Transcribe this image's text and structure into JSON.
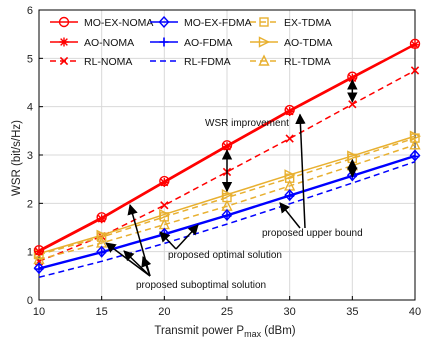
{
  "chart_data": {
    "type": "line",
    "x": [
      10,
      15,
      20,
      25,
      30,
      35,
      40
    ],
    "xlabel": "Transmit power P",
    "xlabel_sub": "max",
    "xlabel_unit": "(dBm)",
    "ylabel": "WSR (bit/s/Hz)",
    "xlim": [
      10,
      40
    ],
    "ylim": [
      0,
      6
    ],
    "xticks": [
      10,
      15,
      20,
      25,
      30,
      35,
      40
    ],
    "yticks": [
      0,
      1,
      2,
      3,
      4,
      5,
      6
    ],
    "grid": true,
    "legend_position": "top-left",
    "series": [
      {
        "name": "MO-EX-NOMA",
        "color": "#ff0000",
        "dash": "solid",
        "marker": "circle",
        "values": [
          1.03,
          1.71,
          2.46,
          3.2,
          3.93,
          4.62,
          5.3
        ]
      },
      {
        "name": "MO-EX-FDMA",
        "color": "#0000ff",
        "dash": "solid",
        "marker": "diamond",
        "values": [
          0.66,
          1.0,
          1.37,
          1.76,
          2.17,
          2.58,
          2.99
        ]
      },
      {
        "name": "EX-TDMA",
        "color": "#e8b030",
        "dash": "dashed",
        "marker": "square",
        "values": [
          0.94,
          1.3,
          1.72,
          2.12,
          2.52,
          2.93,
          3.35
        ]
      },
      {
        "name": "AO-NOMA",
        "color": "#ff0000",
        "dash": "solid",
        "marker": "star",
        "values": [
          1.0,
          1.68,
          2.43,
          3.17,
          3.9,
          4.59,
          5.28
        ]
      },
      {
        "name": "AO-FDMA",
        "color": "#0000ff",
        "dash": "solid",
        "marker": "plus",
        "values": [
          0.64,
          0.98,
          1.35,
          1.74,
          2.15,
          2.56,
          2.97
        ]
      },
      {
        "name": "AO-TDMA",
        "color": "#e8b030",
        "dash": "solid",
        "marker": "triangle-right",
        "values": [
          0.96,
          1.34,
          1.77,
          2.18,
          2.59,
          2.98,
          3.39
        ]
      },
      {
        "name": "RL-NOMA",
        "color": "#ff0000",
        "dash": "dashed",
        "marker": "x",
        "values": [
          0.8,
          1.32,
          1.96,
          2.65,
          3.34,
          4.05,
          4.75
        ]
      },
      {
        "name": "RL-FDMA",
        "color": "#0000ff",
        "dash": "dashed",
        "marker": "none",
        "values": [
          0.47,
          0.8,
          1.17,
          1.57,
          1.99,
          2.42,
          2.86
        ]
      },
      {
        "name": "RL-TDMA",
        "color": "#e8b030",
        "dash": "dashed",
        "marker": "triangle-up",
        "values": [
          0.84,
          1.18,
          1.56,
          1.94,
          2.36,
          2.78,
          3.21
        ]
      }
    ],
    "annotations": [
      {
        "text": "WSR improvement"
      },
      {
        "text": "proposed upper bound"
      },
      {
        "text": "proposed optimal solution"
      },
      {
        "text": "proposed suboptimal solution"
      }
    ]
  }
}
